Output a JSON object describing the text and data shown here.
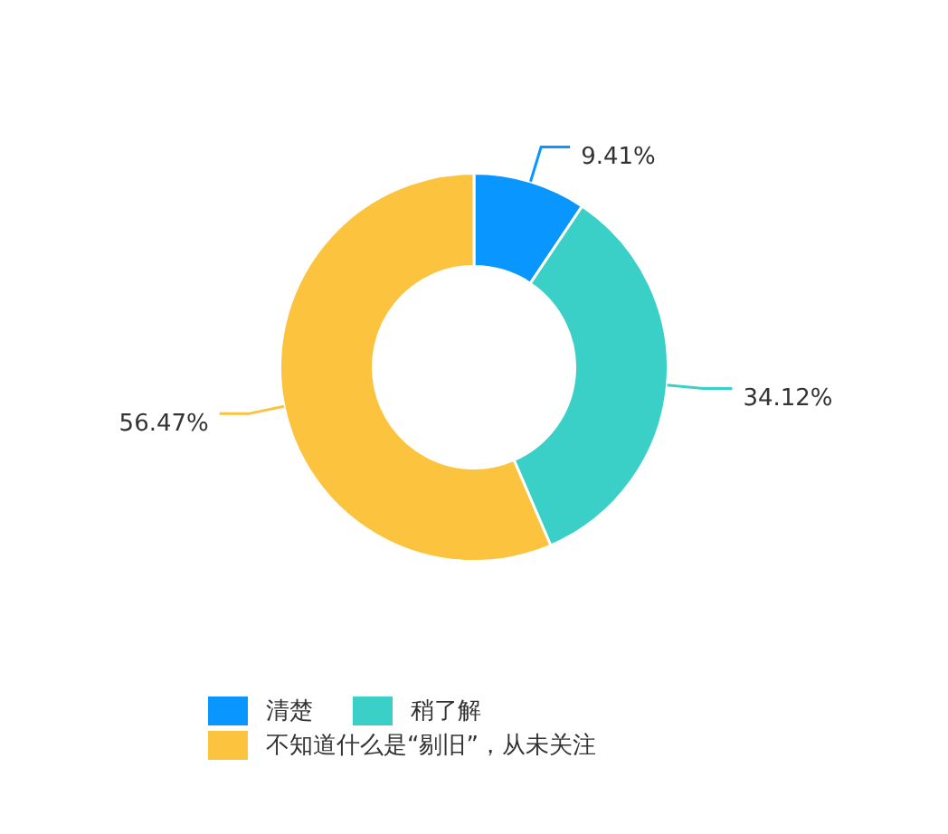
{
  "chart_data": {
    "type": "donut",
    "categories": [
      "清楚",
      "稍了解",
      "不知道什么是“剔旧”，从未关注"
    ],
    "values": [
      9.41,
      34.12,
      56.47
    ],
    "colors": [
      "#0a96ff",
      "#3ad0c8",
      "#fcc43e"
    ],
    "value_labels": [
      "9.41%",
      "34.12%",
      "56.47%"
    ],
    "legend": "bottom"
  }
}
